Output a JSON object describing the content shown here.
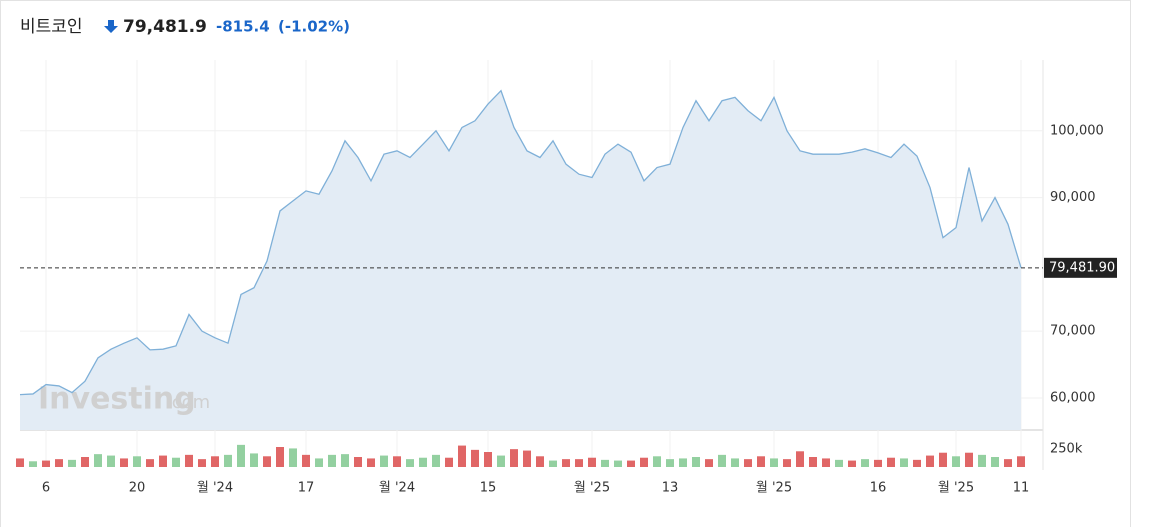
{
  "chart_data": {
    "type": "area",
    "title": "비트코인",
    "header_price": "79,481.9",
    "header_change": "-815.4",
    "header_change_pct": "(-1.02%)",
    "watermark": [
      "Investing",
      ".com"
    ],
    "color": "#7fb0d8",
    "fill": "#e3ecf5",
    "categories": [
      null,
      null,
      "6",
      null,
      null,
      null,
      null,
      null,
      null,
      "20",
      null,
      null,
      null,
      null,
      null,
      "월 '24",
      null,
      null,
      null,
      null,
      null,
      null,
      "17",
      null,
      null,
      null,
      null,
      null,
      null,
      "월 '24",
      null,
      null,
      null,
      null,
      null,
      null,
      "15",
      null,
      null,
      null,
      null,
      null,
      null,
      null,
      "월 '25",
      null,
      null,
      null,
      null,
      null,
      "13",
      null,
      null,
      null,
      null,
      null,
      null,
      null,
      "월 '25",
      null,
      null,
      null,
      null,
      null,
      null,
      null,
      "16",
      null,
      null,
      null,
      null,
      null,
      "월 '25",
      null,
      null,
      null,
      null,
      "11"
    ],
    "values": [
      60500,
      60600,
      62000,
      61800,
      60800,
      62500,
      66000,
      67300,
      68200,
      69000,
      67200,
      67300,
      67800,
      72500,
      70000,
      69000,
      68200,
      75500,
      76500,
      80500,
      88000,
      89500,
      91000,
      90500,
      94000,
      98500,
      96000,
      92500,
      96500,
      97000,
      96000,
      98000,
      100000,
      97000,
      100500,
      101500,
      104000,
      106000,
      100500,
      97000,
      96000,
      98500,
      95000,
      93500,
      93000,
      96500,
      98000,
      96800,
      92500,
      94500,
      95000,
      100500,
      104500,
      101500,
      104500,
      105000,
      103000,
      101500,
      105000,
      100000,
      97000,
      96500,
      96500,
      96500,
      96800,
      97300,
      96700,
      96000,
      98000,
      96200,
      91500,
      84000,
      85500,
      94500,
      86500,
      90000,
      86000,
      79500
    ],
    "ylim": [
      55200,
      110600
    ],
    "yticks": [
      {
        "value": 60000,
        "label": "60,000"
      },
      {
        "value": 70000,
        "label": "70,000"
      },
      {
        "value": 90000,
        "label": "90,000"
      },
      {
        "value": 100000,
        "label": "100,000"
      }
    ],
    "last_price": {
      "value": 79481.9,
      "label": "79,481.90"
    },
    "volume": {
      "ylim": [
        0,
        490000
      ],
      "yticks": [
        {
          "value": 250000,
          "label": "250k"
        }
      ],
      "values": [
        120000,
        80000,
        90000,
        110000,
        100000,
        140000,
        180000,
        160000,
        120000,
        150000,
        110000,
        160000,
        130000,
        170000,
        110000,
        150000,
        170000,
        310000,
        190000,
        150000,
        280000,
        260000,
        170000,
        120000,
        170000,
        180000,
        140000,
        120000,
        160000,
        150000,
        110000,
        130000,
        170000,
        130000,
        300000,
        240000,
        210000,
        160000,
        250000,
        230000,
        150000,
        90000,
        110000,
        110000,
        130000,
        100000,
        90000,
        90000,
        130000,
        150000,
        110000,
        120000,
        140000,
        110000,
        170000,
        120000,
        110000,
        150000,
        120000,
        110000,
        220000,
        140000,
        120000,
        100000,
        90000,
        110000,
        100000,
        130000,
        120000,
        100000,
        160000,
        200000,
        150000,
        200000,
        170000,
        140000,
        110000,
        150000
      ],
      "colors": [
        "#e06666",
        "#93d0a0",
        "#e06666",
        "#e06666",
        "#93d0a0",
        "#e06666",
        "#93d0a0",
        "#93d0a0",
        "#e06666",
        "#93d0a0",
        "#e06666",
        "#e06666",
        "#93d0a0",
        "#e06666",
        "#e06666",
        "#e06666",
        "#93d0a0",
        "#93d0a0",
        "#93d0a0",
        "#e06666",
        "#e06666",
        "#93d0a0",
        "#e06666",
        "#93d0a0",
        "#93d0a0",
        "#93d0a0",
        "#e06666",
        "#e06666",
        "#93d0a0",
        "#e06666",
        "#93d0a0",
        "#93d0a0",
        "#93d0a0",
        "#e06666",
        "#e06666",
        "#e06666",
        "#e06666",
        "#93d0a0",
        "#e06666",
        "#e06666",
        "#e06666",
        "#93d0a0",
        "#e06666",
        "#e06666",
        "#e06666",
        "#93d0a0",
        "#93d0a0",
        "#e06666",
        "#e06666",
        "#93d0a0",
        "#93d0a0",
        "#93d0a0",
        "#93d0a0",
        "#e06666",
        "#93d0a0",
        "#93d0a0",
        "#e06666",
        "#e06666",
        "#93d0a0",
        "#e06666",
        "#e06666",
        "#e06666",
        "#e06666",
        "#93d0a0",
        "#e06666",
        "#93d0a0",
        "#e06666",
        "#e06666",
        "#93d0a0",
        "#e06666",
        "#e06666",
        "#e06666",
        "#93d0a0",
        "#e06666",
        "#93d0a0",
        "#93d0a0",
        "#e06666",
        "#e06666"
      ]
    }
  }
}
